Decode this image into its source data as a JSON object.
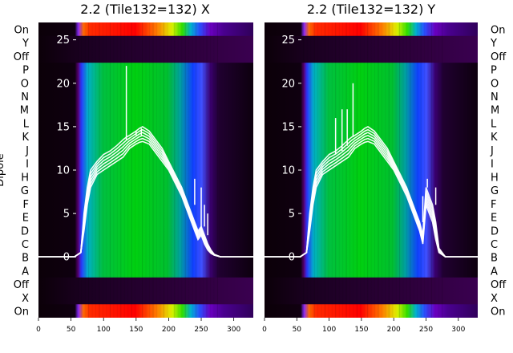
{
  "chart_data": [
    {
      "type": "heatmap",
      "title": "2.2 (Tile132=132) X",
      "ylabel": "Dipole",
      "xlim": [
        0,
        330
      ],
      "x_ticks": [
        0,
        50,
        100,
        150,
        200,
        250,
        300
      ],
      "y_ticks": [
        "On",
        "Y",
        "Off",
        "P",
        "O",
        "N",
        "M",
        "L",
        "K",
        "J",
        "I",
        "H",
        "G",
        "F",
        "E",
        "D",
        "C",
        "B",
        "A",
        "Off",
        "X",
        "On"
      ],
      "overlay_ticks": [
        25,
        20,
        15,
        10,
        5,
        0
      ],
      "overlay_ylim": [
        -7,
        27
      ],
      "overlay_line": {
        "x": [
          0,
          55,
          65,
          70,
          75,
          80,
          90,
          100,
          110,
          120,
          130,
          135,
          140,
          150,
          155,
          160,
          170,
          180,
          190,
          200,
          210,
          220,
          230,
          240,
          245,
          250,
          255,
          260,
          265,
          270,
          280,
          330
        ],
        "y_lower": [
          0,
          0,
          0.5,
          3,
          6,
          8,
          9.5,
          10,
          10.5,
          11,
          11.5,
          12,
          12.5,
          13,
          13.2,
          13.3,
          13,
          12,
          11,
          10,
          8.5,
          7,
          5,
          3,
          2,
          2.5,
          1.5,
          0.8,
          0.4,
          0.2,
          0,
          0
        ],
        "y_upper": [
          0,
          0,
          0.5,
          5,
          8,
          10,
          11,
          11.8,
          12.2,
          12.8,
          13.5,
          13.8,
          14,
          14.5,
          14.8,
          15,
          14.5,
          13.5,
          12.5,
          11,
          9.5,
          8,
          6,
          4,
          3,
          3.5,
          2.5,
          1.5,
          0.8,
          0.3,
          0,
          0
        ],
        "spikes": [
          [
            135,
            22
          ],
          [
            150,
            14.5
          ],
          [
            158,
            14
          ],
          [
            240,
            9
          ],
          [
            250,
            8
          ],
          [
            255,
            6
          ],
          [
            260,
            5
          ]
        ]
      }
    },
    {
      "type": "heatmap",
      "title": "2.2 (Tile132=132) Y",
      "ylabel": "",
      "xlim": [
        0,
        330
      ],
      "x_ticks": [
        0,
        50,
        100,
        150,
        200,
        250,
        300
      ],
      "y_ticks": [
        "On",
        "Y",
        "Off",
        "P",
        "O",
        "N",
        "M",
        "L",
        "K",
        "J",
        "I",
        "H",
        "G",
        "F",
        "E",
        "D",
        "C",
        "B",
        "A",
        "Off",
        "X",
        "On"
      ],
      "overlay_ticks": [
        25,
        20,
        15,
        10,
        5,
        0
      ],
      "overlay_ylim": [
        -7,
        27
      ],
      "overlay_line": {
        "x": [
          0,
          55,
          65,
          70,
          75,
          80,
          90,
          100,
          110,
          120,
          130,
          135,
          140,
          150,
          155,
          160,
          170,
          180,
          190,
          200,
          210,
          220,
          230,
          240,
          245,
          250,
          255,
          260,
          265,
          270,
          280,
          330
        ],
        "y_lower": [
          0,
          0,
          0.5,
          3,
          6,
          8,
          9.5,
          10,
          10.5,
          11,
          11.5,
          12,
          12.5,
          13,
          13.2,
          13.3,
          13,
          12,
          11,
          10,
          8.5,
          7,
          5,
          3,
          1.5,
          6,
          5,
          4,
          2,
          0.5,
          0,
          0
        ],
        "y_upper": [
          0,
          0,
          0.5,
          5,
          8,
          10,
          11,
          11.8,
          12.2,
          12.8,
          13.5,
          13.8,
          14,
          14.5,
          14.8,
          15,
          14.5,
          13.5,
          12.5,
          11,
          9.5,
          8,
          6,
          4,
          2.5,
          8,
          7,
          6,
          4,
          1,
          0,
          0
        ],
        "spikes": [
          [
            110,
            16
          ],
          [
            120,
            17
          ],
          [
            128,
            17
          ],
          [
            137,
            20
          ],
          [
            245,
            7
          ],
          [
            252,
            9
          ],
          [
            258,
            7
          ],
          [
            265,
            8
          ]
        ]
      }
    }
  ]
}
